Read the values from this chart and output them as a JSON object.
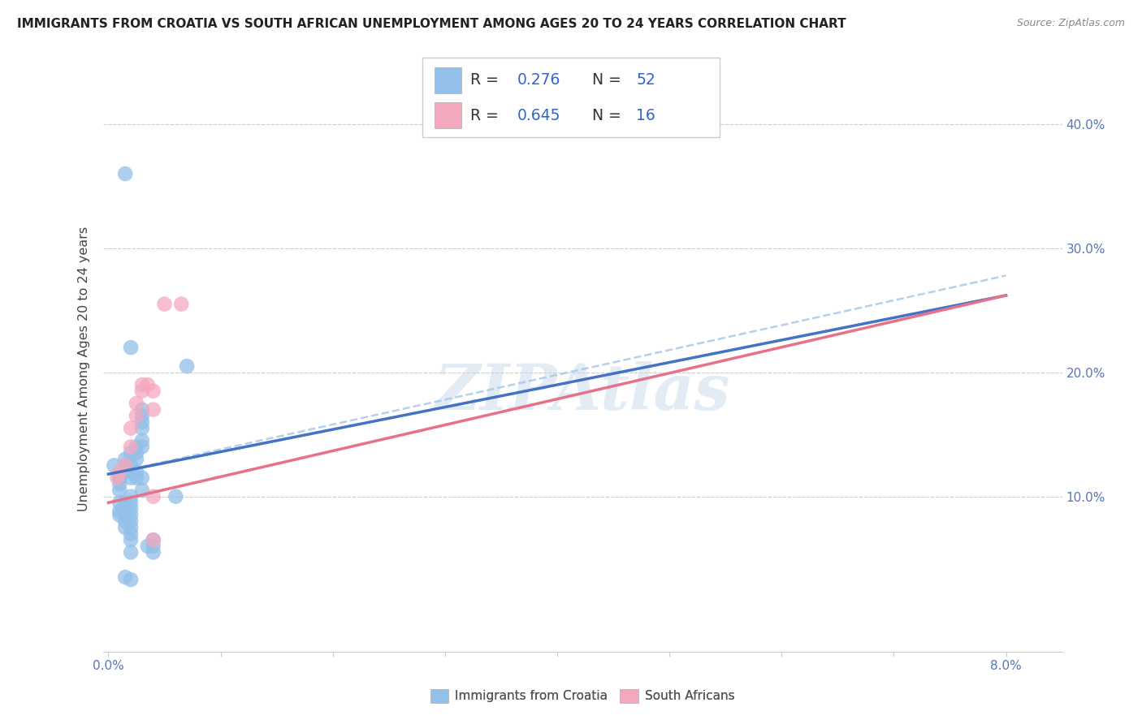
{
  "title": "IMMIGRANTS FROM CROATIA VS SOUTH AFRICAN UNEMPLOYMENT AMONG AGES 20 TO 24 YEARS CORRELATION CHART",
  "source": "Source: ZipAtlas.com",
  "ylabel": "Unemployment Among Ages 20 to 24 years",
  "legend_R1": "0.276",
  "legend_N1": "52",
  "legend_R2": "0.645",
  "legend_N2": "16",
  "watermark": "ZIPAtlas",
  "blue_color": "#92c0e8",
  "pink_color": "#f4a8be",
  "blue_line_color": "#4472c4",
  "pink_line_color": "#e8718a",
  "blue_dash_color": "#a8c8e8",
  "blue_scatter": [
    [
      0.0005,
      0.125
    ],
    [
      0.001,
      0.095
    ],
    [
      0.001,
      0.105
    ],
    [
      0.001,
      0.11
    ],
    [
      0.001,
      0.115
    ],
    [
      0.001,
      0.115
    ],
    [
      0.001,
      0.085
    ],
    [
      0.001,
      0.088
    ],
    [
      0.0015,
      0.13
    ],
    [
      0.0015,
      0.125
    ],
    [
      0.0015,
      0.12
    ],
    [
      0.0015,
      0.095
    ],
    [
      0.0015,
      0.09
    ],
    [
      0.0015,
      0.085
    ],
    [
      0.0015,
      0.08
    ],
    [
      0.0015,
      0.075
    ],
    [
      0.002,
      0.135
    ],
    [
      0.002,
      0.125
    ],
    [
      0.002,
      0.12
    ],
    [
      0.002,
      0.115
    ],
    [
      0.002,
      0.1
    ],
    [
      0.002,
      0.095
    ],
    [
      0.002,
      0.09
    ],
    [
      0.002,
      0.085
    ],
    [
      0.002,
      0.08
    ],
    [
      0.002,
      0.075
    ],
    [
      0.002,
      0.07
    ],
    [
      0.002,
      0.065
    ],
    [
      0.002,
      0.055
    ],
    [
      0.0025,
      0.14
    ],
    [
      0.0025,
      0.135
    ],
    [
      0.0025,
      0.13
    ],
    [
      0.0025,
      0.12
    ],
    [
      0.0025,
      0.115
    ],
    [
      0.003,
      0.17
    ],
    [
      0.003,
      0.165
    ],
    [
      0.003,
      0.16
    ],
    [
      0.003,
      0.155
    ],
    [
      0.003,
      0.145
    ],
    [
      0.003,
      0.14
    ],
    [
      0.003,
      0.115
    ],
    [
      0.003,
      0.105
    ],
    [
      0.0035,
      0.06
    ],
    [
      0.004,
      0.055
    ],
    [
      0.004,
      0.06
    ],
    [
      0.004,
      0.065
    ],
    [
      0.0015,
      0.035
    ],
    [
      0.002,
      0.033
    ],
    [
      0.0015,
      0.36
    ],
    [
      0.002,
      0.22
    ],
    [
      0.007,
      0.205
    ],
    [
      0.006,
      0.1
    ]
  ],
  "pink_scatter": [
    [
      0.0008,
      0.115
    ],
    [
      0.001,
      0.12
    ],
    [
      0.0015,
      0.125
    ],
    [
      0.002,
      0.14
    ],
    [
      0.002,
      0.155
    ],
    [
      0.0025,
      0.165
    ],
    [
      0.0025,
      0.175
    ],
    [
      0.003,
      0.185
    ],
    [
      0.003,
      0.19
    ],
    [
      0.0035,
      0.19
    ],
    [
      0.004,
      0.185
    ],
    [
      0.004,
      0.17
    ],
    [
      0.004,
      0.1
    ],
    [
      0.004,
      0.065
    ],
    [
      0.005,
      0.255
    ],
    [
      0.0065,
      0.255
    ]
  ],
  "blue_line_x": [
    0.0,
    0.08
  ],
  "blue_line_y": [
    0.118,
    0.262
  ],
  "pink_line_x": [
    0.0,
    0.08
  ],
  "pink_line_y": [
    0.095,
    0.262
  ],
  "blue_dash_line_x": [
    0.0,
    0.08
  ],
  "blue_dash_line_y": [
    0.118,
    0.278
  ],
  "xlim": [
    -0.0005,
    0.085
  ],
  "ylim": [
    -0.025,
    0.43
  ],
  "y_tick_positions": [
    0.1,
    0.2,
    0.3,
    0.4
  ],
  "y_tick_labels": [
    "10.0%",
    "20.0%",
    "30.0%",
    "40.0%"
  ],
  "x_tick_positions": [
    0.0,
    0.01,
    0.02,
    0.03,
    0.04,
    0.05,
    0.06,
    0.07,
    0.08
  ],
  "x_tick_labels": [
    "0.0%",
    "",
    "",
    "",
    "",
    "",
    "",
    "",
    "8.0%"
  ]
}
